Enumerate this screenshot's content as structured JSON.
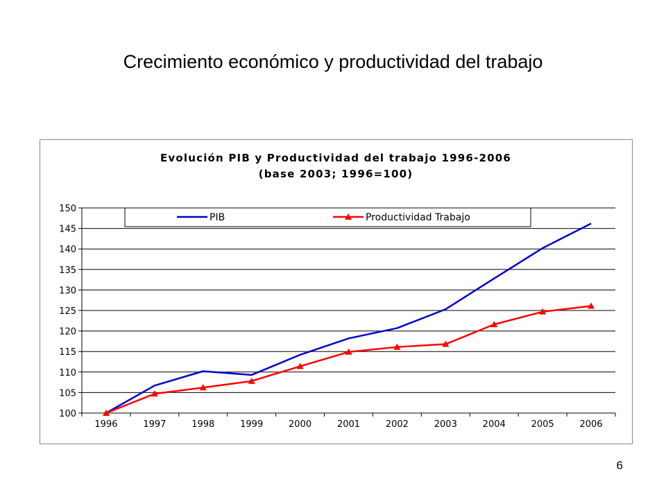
{
  "slide": {
    "title": "Crecimiento económico y productividad del trabajo",
    "page_number": "6"
  },
  "chart_data": {
    "type": "line",
    "title": "Evolución PIB y Productividad del trabajo 1996-2006",
    "subtitle": "(base 2003; 1996=100)",
    "categories": [
      "1996",
      "1997",
      "1998",
      "1999",
      "2000",
      "2001",
      "2002",
      "2003",
      "2004",
      "2005",
      "2006"
    ],
    "series": [
      {
        "name": "PIB",
        "color": "#0000CC",
        "marker": "none",
        "values": [
          100,
          106.7,
          110.2,
          109.3,
          114.2,
          118.2,
          120.7,
          125.3,
          132.8,
          140.2,
          146.2
        ]
      },
      {
        "name": "Productividad Trabajo",
        "color": "#FF0000",
        "marker": "triangle",
        "values": [
          100,
          104.7,
          106.2,
          107.8,
          111.4,
          114.9,
          116.1,
          116.8,
          121.6,
          124.7,
          126.1
        ]
      }
    ],
    "ylim": [
      100,
      150
    ],
    "yticks": [
      "100",
      "105",
      "110",
      "115",
      "120",
      "125",
      "130",
      "135",
      "140",
      "145",
      "150"
    ],
    "xlabel": "",
    "ylabel": "",
    "grid": true,
    "legend": "top"
  }
}
